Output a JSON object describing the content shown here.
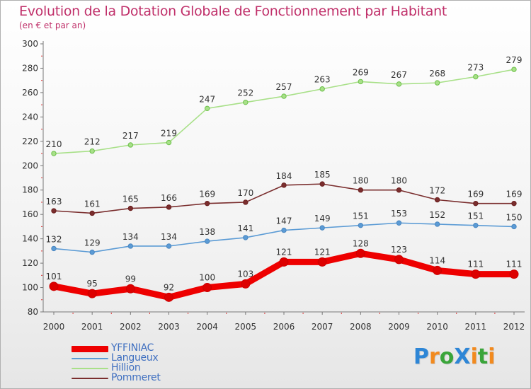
{
  "title": "Evolution de la Dotation Globale de Fonctionnement par Habitant",
  "subtitle": "(en € et par an)",
  "brand": {
    "text": "ProXiti",
    "letters": [
      {
        "ch": "P",
        "color": "#2e86d6"
      },
      {
        "ch": "r",
        "color": "#f28a1e"
      },
      {
        "ch": "o",
        "color": "#3aa53a"
      },
      {
        "ch": "X",
        "color": "#2e86d6"
      },
      {
        "ch": "i",
        "color": "#f28a1e"
      },
      {
        "ch": "t",
        "color": "#3aa53a"
      },
      {
        "ch": "i",
        "color": "#f28a1e"
      }
    ]
  },
  "chart_data": {
    "type": "line",
    "x": [
      "2000",
      "2001",
      "2002",
      "2003",
      "2004",
      "2005",
      "2006",
      "2007",
      "2008",
      "2009",
      "2010",
      "2011",
      "2012"
    ],
    "ylim": [
      80,
      300
    ],
    "yticks": [
      80,
      100,
      120,
      140,
      160,
      180,
      200,
      220,
      240,
      260,
      280,
      300
    ],
    "grid": false,
    "legend_placement": "bottom-left",
    "series": [
      {
        "name": "YFFINIAC",
        "color": "#ee0000",
        "marker": "#cc0000",
        "values": [
          101,
          95,
          99,
          92,
          100,
          103,
          121,
          121,
          128,
          123,
          114,
          111,
          111
        ]
      },
      {
        "name": "Langueux",
        "color": "#5b9bd5",
        "marker": "#4a86c0",
        "values": [
          132,
          129,
          134,
          134,
          138,
          141,
          147,
          149,
          151,
          153,
          152,
          151,
          150
        ]
      },
      {
        "name": "Hillion",
        "color": "#a8e088",
        "marker": "#6cc04a",
        "values": [
          210,
          212,
          217,
          219,
          247,
          252,
          257,
          263,
          269,
          267,
          268,
          273,
          279
        ]
      },
      {
        "name": "Pommeret",
        "color": "#7a2e2e",
        "marker": "#6a1e1e",
        "values": [
          163,
          161,
          165,
          166,
          169,
          170,
          184,
          185,
          180,
          180,
          172,
          169,
          169
        ]
      }
    ]
  }
}
